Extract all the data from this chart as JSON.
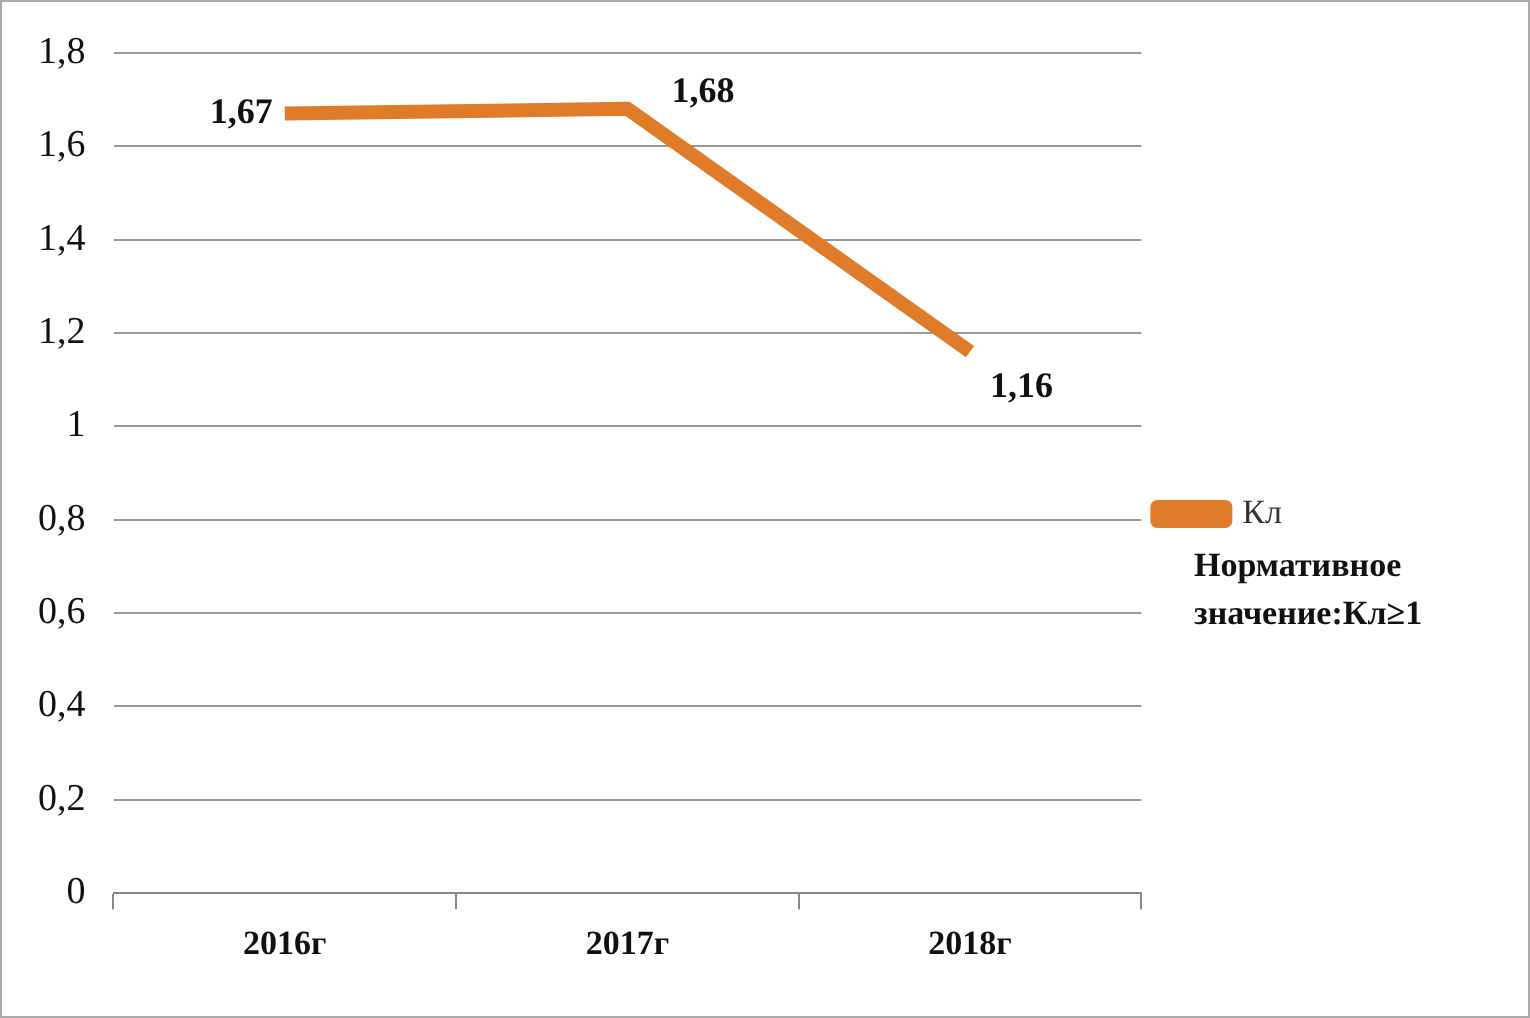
{
  "chart_data": {
    "type": "line",
    "categories": [
      "2016г",
      "2017г",
      "2018г"
    ],
    "series": [
      {
        "name": "Кл",
        "color": "#e07b2a",
        "values": [
          1.67,
          1.68,
          1.16
        ],
        "value_labels": [
          "1,67",
          "1,68",
          "1,16"
        ]
      }
    ],
    "ylim": [
      0,
      1.8
    ],
    "yticks": [
      {
        "value": 0,
        "label": "0"
      },
      {
        "value": 0.2,
        "label": "0,2"
      },
      {
        "value": 0.4,
        "label": "0,4"
      },
      {
        "value": 0.6,
        "label": "0,6"
      },
      {
        "value": 0.8,
        "label": "0,8"
      },
      {
        "value": 1,
        "label": "1"
      },
      {
        "value": 1.2,
        "label": "1,2"
      },
      {
        "value": 1.4,
        "label": "1,4"
      },
      {
        "value": 1.6,
        "label": "1,6"
      },
      {
        "value": 1.8,
        "label": "1,8"
      }
    ],
    "grid": "y",
    "legend": "right",
    "marker": "none",
    "line_style": "solid",
    "annotations": [
      "Нормативное значение:Кл≥1"
    ]
  }
}
